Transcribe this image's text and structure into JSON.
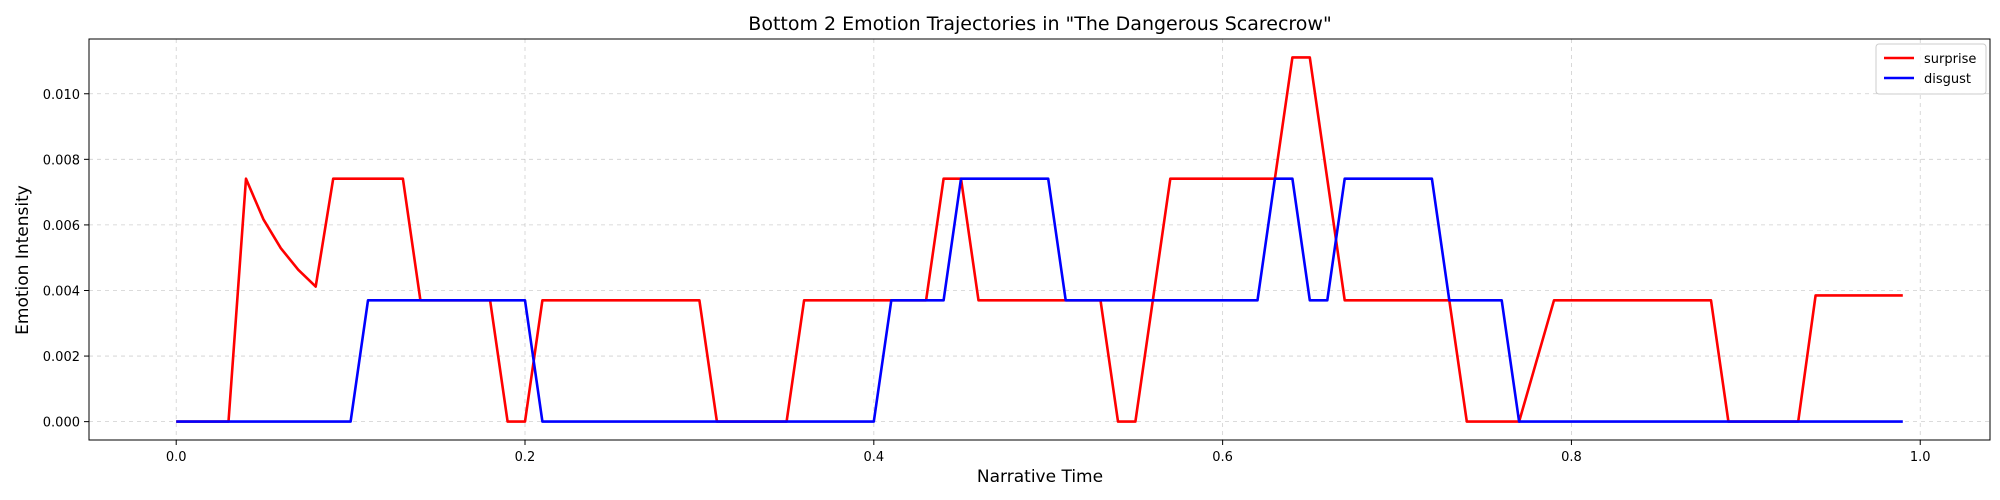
{
  "chart_data": {
    "type": "line",
    "title": "Bottom 2 Emotion Trajectories in \"The Dangerous Scarecrow\"",
    "xlabel": "Narrative Time",
    "ylabel": "Emotion Intensity",
    "xlim": [
      -0.05,
      1.04
    ],
    "ylim": [
      -0.00056,
      0.01167
    ],
    "xticks": [
      0.0,
      0.2,
      0.4,
      0.6,
      0.8,
      1.0
    ],
    "xtick_labels": [
      "0.0",
      "0.2",
      "0.4",
      "0.6",
      "0.8",
      "1.0"
    ],
    "yticks": [
      0.0,
      0.002,
      0.004,
      0.006,
      0.008,
      0.01
    ],
    "ytick_labels": [
      "0.000",
      "0.002",
      "0.004",
      "0.006",
      "0.008",
      "0.010"
    ],
    "grid": true,
    "legend_position": "top-right",
    "series": [
      {
        "name": "surprise",
        "color": "#ff0000",
        "points": [
          [
            0.0,
            0.0
          ],
          [
            0.03,
            0.0
          ],
          [
            0.04,
            0.00741
          ],
          [
            0.05,
            0.00617
          ],
          [
            0.06,
            0.00529
          ],
          [
            0.07,
            0.00463
          ],
          [
            0.08,
            0.00412
          ],
          [
            0.09,
            0.00741
          ],
          [
            0.13,
            0.00741
          ],
          [
            0.14,
            0.0037
          ],
          [
            0.18,
            0.0037
          ],
          [
            0.19,
            0.0
          ],
          [
            0.2,
            0.0
          ],
          [
            0.21,
            0.0037
          ],
          [
            0.3,
            0.0037
          ],
          [
            0.31,
            0.0
          ],
          [
            0.35,
            0.0
          ],
          [
            0.36,
            0.0037
          ],
          [
            0.43,
            0.0037
          ],
          [
            0.44,
            0.00741
          ],
          [
            0.45,
            0.00741
          ],
          [
            0.46,
            0.0037
          ],
          [
            0.53,
            0.0037
          ],
          [
            0.54,
            0.0
          ],
          [
            0.55,
            0.0
          ],
          [
            0.57,
            0.00741
          ],
          [
            0.63,
            0.00741
          ],
          [
            0.64,
            0.01111
          ],
          [
            0.65,
            0.01111
          ],
          [
            0.67,
            0.0037
          ],
          [
            0.73,
            0.0037
          ],
          [
            0.74,
            0.0
          ],
          [
            0.77,
            0.0
          ],
          [
            0.79,
            0.0037
          ],
          [
            0.88,
            0.0037
          ],
          [
            0.89,
            0.0
          ],
          [
            0.93,
            0.0
          ],
          [
            0.94,
            0.00385
          ],
          [
            0.99,
            0.00385
          ]
        ]
      },
      {
        "name": "disgust",
        "color": "#0000ff",
        "points": [
          [
            0.0,
            0.0
          ],
          [
            0.1,
            0.0
          ],
          [
            0.11,
            0.0037
          ],
          [
            0.2,
            0.0037
          ],
          [
            0.21,
            0.0
          ],
          [
            0.4,
            0.0
          ],
          [
            0.41,
            0.0037
          ],
          [
            0.44,
            0.0037
          ],
          [
            0.45,
            0.00741
          ],
          [
            0.5,
            0.00741
          ],
          [
            0.51,
            0.0037
          ],
          [
            0.62,
            0.0037
          ],
          [
            0.63,
            0.00741
          ],
          [
            0.64,
            0.00741
          ],
          [
            0.65,
            0.0037
          ],
          [
            0.66,
            0.0037
          ],
          [
            0.67,
            0.00741
          ],
          [
            0.72,
            0.00741
          ],
          [
            0.73,
            0.0037
          ],
          [
            0.76,
            0.0037
          ],
          [
            0.77,
            0.0
          ],
          [
            0.99,
            0.0
          ]
        ]
      }
    ]
  }
}
